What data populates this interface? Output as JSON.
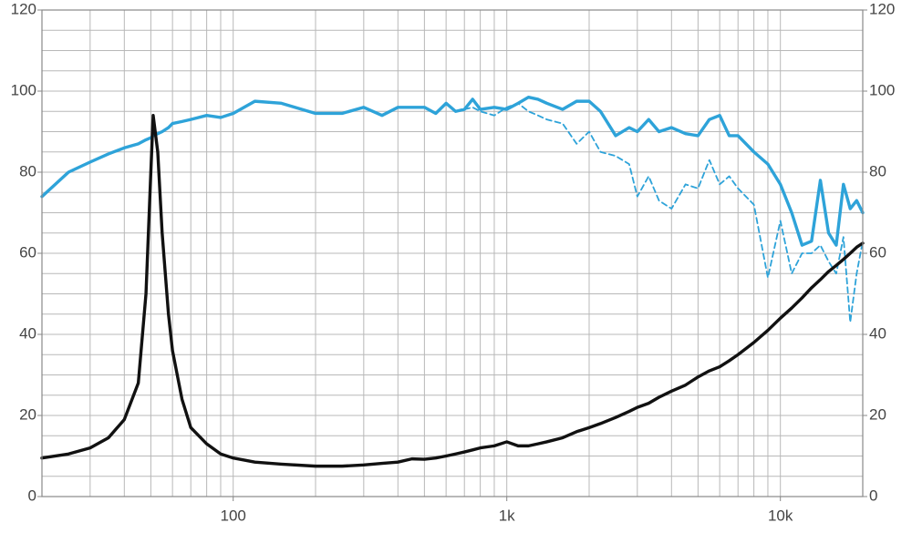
{
  "chart_data": {
    "type": "line",
    "x": [
      20,
      25,
      30,
      35,
      40,
      45,
      48,
      50,
      51,
      53,
      55,
      58,
      60,
      65,
      70,
      80,
      90,
      100,
      120,
      150,
      200,
      250,
      300,
      350,
      400,
      450,
      500,
      550,
      600,
      650,
      700,
      750,
      800,
      900,
      1000,
      1100,
      1200,
      1300,
      1400,
      1600,
      1800,
      2000,
      2200,
      2500,
      2800,
      3000,
      3300,
      3600,
      4000,
      4500,
      5000,
      5500,
      6000,
      6500,
      7000,
      8000,
      9000,
      10000,
      11000,
      12000,
      13000,
      14000,
      15000,
      16000,
      17000,
      18000,
      19000,
      20000
    ],
    "series": [
      {
        "color": "#2ea3d9",
        "style": "solid",
        "values": [
          74,
          80,
          82.5,
          84.5,
          86,
          87,
          88,
          88.5,
          89,
          89.5,
          90,
          91,
          92,
          92.5,
          93,
          94,
          93.5,
          94.5,
          97.5,
          97,
          94.5,
          94.5,
          96,
          94,
          96,
          96,
          96,
          94.5,
          97,
          95,
          95.5,
          98,
          95.5,
          96,
          95.5,
          97,
          98.5,
          98,
          97,
          95.5,
          97.5,
          97.5,
          95,
          89,
          91,
          90,
          93,
          90,
          91,
          89.5,
          89,
          93,
          94,
          89,
          89,
          85,
          82,
          77,
          70,
          62,
          63,
          78,
          65,
          62,
          77,
          71,
          73,
          70
        ]
      },
      {
        "color": "#2ea3d9",
        "style": "dashed",
        "values": [
          null,
          null,
          null,
          null,
          null,
          null,
          null,
          null,
          null,
          null,
          null,
          null,
          null,
          null,
          null,
          null,
          null,
          null,
          null,
          null,
          null,
          null,
          null,
          null,
          null,
          null,
          null,
          null,
          null,
          null,
          95.5,
          96,
          95,
          94,
          96,
          97,
          95,
          94,
          93,
          92,
          87,
          90,
          85,
          84,
          82,
          74,
          79,
          73,
          71,
          77,
          76,
          83,
          77,
          79,
          76,
          72,
          54,
          68,
          55,
          60,
          60,
          62,
          58,
          55,
          64,
          43,
          55,
          63
        ]
      },
      {
        "color": "#111111",
        "style": "solid",
        "values": [
          9.5,
          10.5,
          12,
          14.5,
          19,
          28,
          50,
          80,
          94,
          85,
          65,
          45,
          36,
          24,
          17,
          13,
          10.5,
          9.5,
          8.5,
          8,
          7.5,
          7.5,
          7.8,
          8.2,
          8.5,
          9.3,
          9.2,
          9.5,
          10,
          10.5,
          11,
          11.5,
          12,
          12.5,
          13.5,
          12.5,
          12.5,
          13,
          13.5,
          14.5,
          16,
          17,
          18,
          19.5,
          21,
          22,
          23,
          24.5,
          26,
          27.5,
          29.5,
          31,
          32,
          33.5,
          35,
          38,
          41,
          44,
          46.5,
          49,
          51.5,
          53.5,
          55.5,
          57,
          58.5,
          60,
          61.5,
          62.5
        ]
      }
    ],
    "xlog": true,
    "xlim": [
      20,
      20000
    ],
    "xticks": [
      {
        "value": 100,
        "label": "100"
      },
      {
        "value": 1000,
        "label": "1k"
      },
      {
        "value": 10000,
        "label": "10k"
      }
    ],
    "xgrid": [
      30,
      40,
      50,
      60,
      70,
      80,
      90,
      100,
      200,
      300,
      400,
      500,
      600,
      700,
      800,
      900,
      1000,
      2000,
      3000,
      4000,
      5000,
      6000,
      7000,
      8000,
      9000,
      10000
    ],
    "ylim": [
      0,
      120
    ],
    "yticks": [
      0,
      20,
      40,
      60,
      80,
      100,
      120
    ],
    "ygrid": [
      5,
      10,
      15,
      20,
      25,
      30,
      35,
      40,
      45,
      50,
      55,
      60,
      65,
      70,
      75,
      80,
      85,
      90,
      95,
      100,
      105,
      110,
      115
    ]
  }
}
